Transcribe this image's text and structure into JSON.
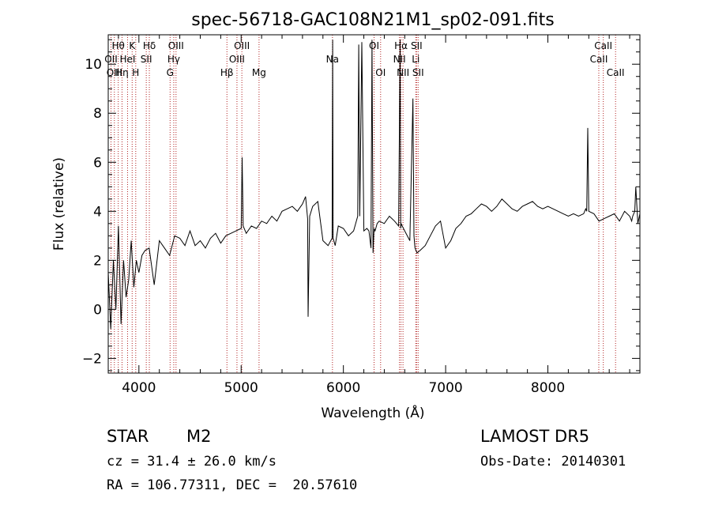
{
  "chart_data": {
    "type": "line",
    "title": "spec-56718-GAC108N21M1_sp02-091.fits",
    "xlabel": "Wavelength (Å)",
    "ylabel": "Flux (relative)",
    "xlim": [
      3700,
      8900
    ],
    "ylim": [
      -2.6,
      11.2
    ],
    "xticks": [
      4000,
      5000,
      6000,
      7000,
      8000
    ],
    "yticks": [
      -2,
      0,
      2,
      4,
      6,
      8,
      10
    ],
    "grid": false,
    "line_color": "#000000",
    "marker_color": "#b22222",
    "lines": [
      {
        "label": "Hθ",
        "wave": 3798,
        "row": 0
      },
      {
        "label": "OII",
        "wave": 3727,
        "row": 1
      },
      {
        "label": "OIII",
        "wave": 3760,
        "row": 2
      },
      {
        "label": "Hη",
        "wave": 3835,
        "row": 2
      },
      {
        "label": "K",
        "wave": 3934,
        "row": 0
      },
      {
        "label": "HeI",
        "wave": 3889,
        "row": 1
      },
      {
        "label": "H",
        "wave": 3969,
        "row": 2
      },
      {
        "label": "Hδ",
        "wave": 4102,
        "row": 0
      },
      {
        "label": "SII",
        "wave": 4072,
        "row": 1
      },
      {
        "label": "OIII",
        "wave": 4363,
        "row": 0
      },
      {
        "label": "Hγ",
        "wave": 4341,
        "row": 1
      },
      {
        "label": "G",
        "wave": 4305,
        "row": 2
      },
      {
        "label": "OIII",
        "wave": 5007,
        "row": 0
      },
      {
        "label": "OIII",
        "wave": 4959,
        "row": 1
      },
      {
        "label": "Hβ",
        "wave": 4861,
        "row": 2
      },
      {
        "label": "Mg",
        "wave": 5175,
        "row": 2
      },
      {
        "label": "Na",
        "wave": 5893,
        "row": 1
      },
      {
        "label": "OI",
        "wave": 6300,
        "row": 0
      },
      {
        "label": "OI",
        "wave": 6364,
        "row": 2
      },
      {
        "label": "Hα",
        "wave": 6563,
        "row": 0
      },
      {
        "label": "NII",
        "wave": 6548,
        "row": 1
      },
      {
        "label": "NII",
        "wave": 6583,
        "row": 2
      },
      {
        "label": "SII",
        "wave": 6716,
        "row": 0
      },
      {
        "label": "Li",
        "wave": 6708,
        "row": 1
      },
      {
        "label": "SII",
        "wave": 6731,
        "row": 2
      },
      {
        "label": "CaII",
        "wave": 8542,
        "row": 0
      },
      {
        "label": "CaII",
        "wave": 8498,
        "row": 1
      },
      {
        "label": "CaII",
        "wave": 8662,
        "row": 2
      }
    ],
    "series": [
      {
        "x": [
          3700,
          3725,
          3750,
          3775,
          3800,
          3825,
          3850,
          3875,
          3900,
          3925,
          3950,
          3975,
          4000,
          4030,
          4060,
          4100,
          4150,
          4200,
          4250,
          4300,
          4350,
          4400,
          4450,
          4500,
          4550,
          4600,
          4650,
          4700,
          4750,
          4800,
          4850,
          4900,
          4950,
          5000,
          5010,
          5020,
          5050,
          5100,
          5150,
          5200,
          5250,
          5300,
          5350,
          5400,
          5450,
          5500,
          5550,
          5600,
          5630,
          5650,
          5655,
          5670,
          5700,
          5750,
          5800,
          5850,
          5890,
          5895,
          5900,
          5920,
          5950,
          6000,
          6050,
          6100,
          6140,
          6150,
          6160,
          6180,
          6200,
          6230,
          6250,
          6270,
          6280,
          6290,
          6300,
          6310,
          6330,
          6350,
          6400,
          6450,
          6500,
          6540,
          6555,
          6560,
          6565,
          6575,
          6600,
          6650,
          6680,
          6690,
          6700,
          6720,
          6750,
          6800,
          6850,
          6900,
          6950,
          7000,
          7050,
          7100,
          7150,
          7200,
          7250,
          7300,
          7350,
          7400,
          7450,
          7500,
          7550,
          7600,
          7650,
          7700,
          7750,
          7800,
          7850,
          7900,
          7950,
          8000,
          8050,
          8100,
          8150,
          8200,
          8250,
          8300,
          8350,
          8370,
          8380,
          8390,
          8400,
          8450,
          8500,
          8550,
          8600,
          8650,
          8700,
          8750,
          8800,
          8820,
          8830,
          8850,
          8860,
          8880,
          8900
        ],
        "y": [
          1.5,
          -0.8,
          2.0,
          0.0,
          3.4,
          -0.6,
          2.0,
          0.5,
          1.2,
          2.8,
          0.9,
          2.0,
          1.5,
          2.2,
          2.4,
          2.5,
          1.0,
          2.8,
          2.5,
          2.2,
          3.0,
          2.9,
          2.6,
          3.2,
          2.6,
          2.8,
          2.5,
          2.9,
          3.1,
          2.7,
          3.0,
          3.1,
          3.2,
          3.3,
          6.2,
          3.4,
          3.1,
          3.4,
          3.3,
          3.6,
          3.5,
          3.8,
          3.6,
          4.0,
          4.1,
          4.2,
          4.0,
          4.3,
          4.6,
          3.7,
          -0.3,
          3.8,
          4.2,
          4.4,
          2.8,
          2.6,
          2.9,
          11.0,
          2.9,
          2.6,
          3.4,
          3.3,
          3.0,
          3.2,
          3.8,
          10.8,
          3.8,
          10.9,
          3.2,
          3.3,
          3.2,
          2.5,
          11.0,
          2.3,
          3.3,
          3.2,
          3.5,
          3.6,
          3.5,
          3.8,
          3.6,
          3.4,
          11.0,
          3.3,
          3.5,
          3.4,
          3.2,
          2.8,
          8.6,
          3.0,
          2.5,
          2.3,
          2.4,
          2.6,
          3.0,
          3.4,
          3.6,
          2.5,
          2.8,
          3.3,
          3.5,
          3.8,
          3.9,
          4.1,
          4.3,
          4.2,
          4.0,
          4.2,
          4.5,
          4.3,
          4.1,
          4.0,
          4.2,
          4.3,
          4.4,
          4.2,
          4.1,
          4.2,
          4.1,
          4.0,
          3.9,
          3.8,
          3.9,
          3.8,
          3.9,
          4.1,
          4.0,
          7.4,
          4.0,
          3.9,
          3.6,
          3.7,
          3.8,
          3.9,
          3.6,
          4.0,
          3.8,
          3.6,
          3.8,
          4.0,
          5.0,
          3.5,
          3.9
        ]
      }
    ]
  },
  "info": {
    "object_type": "STAR",
    "subclass": "M2",
    "survey": "LAMOST DR5",
    "redshift": "cz = 31.4 ± 26.0 km/s",
    "obs_date": "Obs-Date: 20140301",
    "coords": "RA = 106.77311, DEC =  20.57610"
  }
}
